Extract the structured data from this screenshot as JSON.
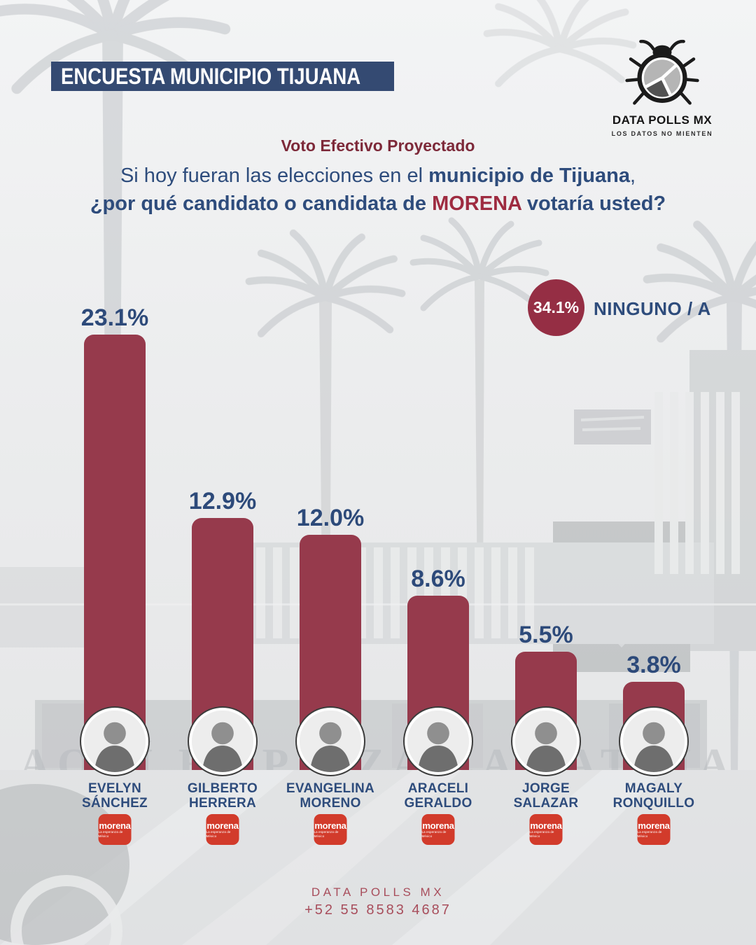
{
  "header": {
    "banner": "ENCUESTA MUNICIPIO TIJUANA",
    "logo": {
      "title": "DATA POLLS MX",
      "tagline": "LOS DATOS NO MIENTEN"
    }
  },
  "subtitle": "Voto Efectivo Proyectado",
  "question": {
    "line1": [
      {
        "text": "Si hoy fueran las elecciones en el ",
        "bold": false,
        "color": "navy"
      },
      {
        "text": "municipio de Tijuana",
        "bold": true,
        "color": "navy"
      },
      {
        "text": ",",
        "bold": false,
        "color": "navy"
      }
    ],
    "line2": [
      {
        "text": "¿por qué candidato o candidata de ",
        "bold": true,
        "color": "navy"
      },
      {
        "text": "MORENA",
        "bold": true,
        "color": "maroon"
      },
      {
        "text": " votaría usted?",
        "bold": true,
        "color": "navy"
      }
    ]
  },
  "none_badge": {
    "value": "34.1%",
    "label": "NINGUNO / A"
  },
  "chart_data": {
    "type": "bar",
    "title": "Voto Efectivo Proyectado",
    "categories": [
      "Evelyn Sánchez",
      "Gilberto Herrera",
      "Evangelina Moreno",
      "Araceli Geraldo",
      "Jorge Salazar",
      "Magaly Ronquillo"
    ],
    "values": [
      23.1,
      12.9,
      12.0,
      8.6,
      5.5,
      3.8
    ],
    "value_labels": [
      "23.1%",
      "12.9%",
      "12.0%",
      "8.6%",
      "5.5%",
      "3.8%"
    ],
    "other_segment": {
      "label": "NINGUNO / A",
      "value": 34.1,
      "value_label": "34.1%"
    },
    "xlabel": "",
    "ylabel": "",
    "ylim": [
      0,
      25
    ],
    "grid": false,
    "legend": false,
    "bar_color": "#963a4c",
    "label_color": "#2d4a7a"
  },
  "candidates": [
    {
      "first": "EVELYN",
      "last": "SÁNCHEZ",
      "party": "morena"
    },
    {
      "first": "GILBERTO",
      "last": "HERRERA",
      "party": "morena"
    },
    {
      "first": "EVANGELINA",
      "last": "MORENO",
      "party": "morena"
    },
    {
      "first": "ARACELI",
      "last": "GERALDO",
      "party": "morena"
    },
    {
      "first": "JORGE",
      "last": "SALAZAR",
      "party": "morena"
    },
    {
      "first": "MAGALY",
      "last": "RONQUILLO",
      "party": "morena"
    }
  ],
  "party_logo": {
    "name": "morena",
    "tagline": "La esperanza de México"
  },
  "background": {
    "sign_text": "AQUÍ EMPIEZA LA PATRIA"
  },
  "footer": {
    "brand": "DATA POLLS MX",
    "phone": "+52 55 8583 4687"
  },
  "colors": {
    "navy": "#2e4c7c",
    "navy_label": "#2d4a7a",
    "banner_navy": "#344a72",
    "maroon_bar": "#963a4c",
    "maroon_badge": "#952e44",
    "maroon_heading": "#7d2939",
    "maroon_accent": "#9e2b40",
    "morena_red": "#d23b2b",
    "footer_rose": "#a84e5c"
  }
}
